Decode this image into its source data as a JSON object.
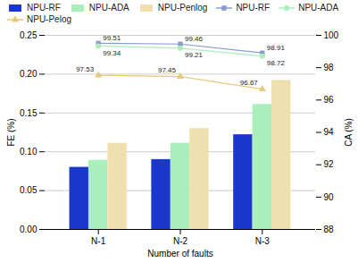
{
  "chart_data": {
    "type": "bar",
    "categories": [
      "N-1",
      "N-2",
      "N-3"
    ],
    "xlabel": "Number of faults",
    "ylabel": "FE (%)",
    "y2label": "CA (%)",
    "ylim": [
      0.0,
      0.25
    ],
    "yticks": [
      {
        "value": 0.0,
        "label": "0.00"
      },
      0.05,
      {
        "value": 0.1,
        "label": "0.10"
      },
      0.15,
      {
        "value": 0.2,
        "label": "0.20"
      },
      0.25
    ],
    "y2lim": [
      88,
      100
    ],
    "y2ticks": [
      88,
      90,
      92,
      94,
      96,
      98,
      100
    ],
    "grid": true,
    "legend": "upper left",
    "series": [
      {
        "name": "NPU-RF",
        "type": "bar",
        "color": "#1a39cc",
        "values": [
          0.08,
          0.09,
          0.122
        ]
      },
      {
        "name": "NPU-ADA",
        "type": "bar",
        "color": "#aaeebb",
        "values": [
          0.089,
          0.111,
          0.161
        ]
      },
      {
        "name": "NPU-Penlog",
        "type": "bar",
        "color": "#f0e0b0",
        "values": [
          0.111,
          0.13,
          0.192
        ]
      },
      {
        "name": "NPU-RF",
        "type": "line",
        "axis": "y2",
        "color": "#8899cc",
        "marker": "square",
        "data_labels": true,
        "values": [
          99.51,
          99.46,
          98.91
        ]
      },
      {
        "name": "NPU-ADA",
        "type": "line",
        "axis": "y2",
        "color": "#aaeebb",
        "marker": "circle",
        "data_labels": true,
        "values": [
          99.34,
          99.21,
          98.72
        ]
      },
      {
        "name": "NPU-Pelog",
        "type": "line",
        "axis": "y2",
        "color": "#e8c87a",
        "marker": "triangle",
        "data_labels": true,
        "values": [
          97.53,
          97.45,
          96.67
        ]
      }
    ]
  }
}
